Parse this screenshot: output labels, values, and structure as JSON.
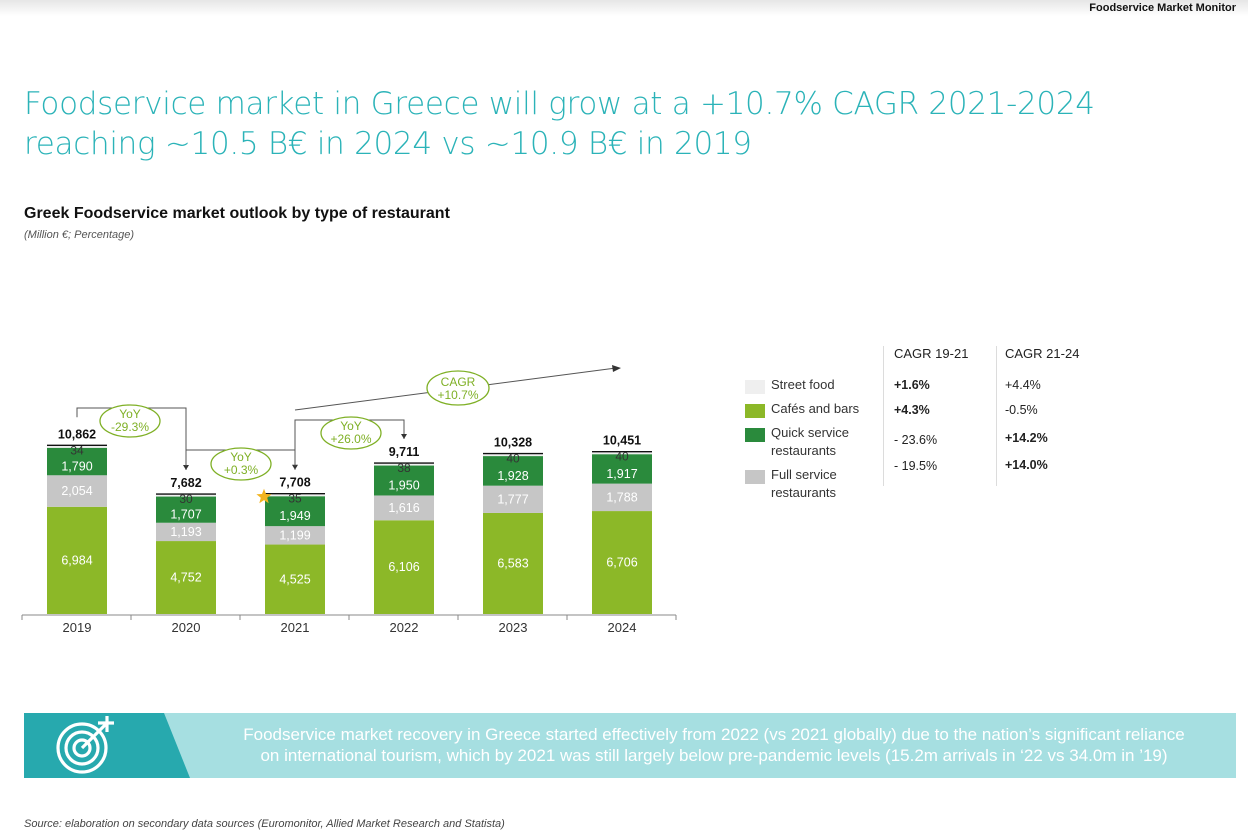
{
  "brand": "Foodservice Market Monitor",
  "headline": {
    "line1": "Foodservice market in Greece will grow at a +10.7% CAGR 2021-2024",
    "line2": "reaching ~10.5 B€ in 2024 vs ~10.9 B€ in 2019"
  },
  "chart_data": {
    "type": "bar",
    "stacked": true,
    "title": "Greek Foodservice market outlook by type of restaurant",
    "subtitle": "(Million €; Percentage)",
    "categories": [
      "2019",
      "2020",
      "2021",
      "2022",
      "2023",
      "2024"
    ],
    "totals": [
      "10,862",
      "7,682",
      "7,708",
      "9,711",
      "10,328",
      "10,451"
    ],
    "series": [
      {
        "name": "Cafés and bars",
        "color": "#8cb828",
        "values": [
          6984,
          4752,
          4525,
          6106,
          6583,
          6706
        ],
        "labels": [
          "6,984",
          "4,752",
          "4,525",
          "6,106",
          "6,583",
          "6,706"
        ]
      },
      {
        "name": "Full service restaurants",
        "color": "#c6c6c6",
        "values": [
          2054,
          1193,
          1199,
          1616,
          1777,
          1788
        ],
        "labels": [
          "2,054",
          "1,193",
          "1,199",
          "1,616",
          "1,777",
          "1,788"
        ]
      },
      {
        "name": "Quick service restaurants",
        "color": "#2a8a3c",
        "values": [
          1790,
          1707,
          1949,
          1950,
          1928,
          1917
        ],
        "labels": [
          "1,790",
          "1,707",
          "1,949",
          "1,950",
          "1,928",
          "1,917"
        ]
      },
      {
        "name": "Street food",
        "color": "#efefef",
        "values": [
          34,
          30,
          35,
          38,
          40,
          40
        ],
        "labels": [
          "34",
          "30",
          "35",
          "38",
          "40",
          "40"
        ]
      }
    ],
    "annotations": {
      "yoy": [
        {
          "label": "YoY",
          "value": "-29.3%",
          "from": "2019",
          "to": "2020"
        },
        {
          "label": "YoY",
          "value": "+0.3%",
          "from": "2020",
          "to": "2021"
        },
        {
          "label": "YoY",
          "value": "+26.0%",
          "from": "2021",
          "to": "2022"
        }
      ],
      "cagr": {
        "label": "CAGR",
        "value": "+10.7%",
        "from": "2021",
        "to": "2024"
      },
      "star": "2021"
    }
  },
  "legend": {
    "items": [
      {
        "label": "Street food",
        "color": "#efefef"
      },
      {
        "label": "Cafés and bars",
        "color": "#8cb828"
      },
      {
        "label": "Quick service restaurants",
        "color": "#2a8a3c"
      },
      {
        "label": "Full service restaurants",
        "color": "#c6c6c6"
      }
    ]
  },
  "cagr_table": {
    "headers": [
      "CAGR 19-21",
      "CAGR 21-24"
    ],
    "rows": [
      [
        "+1.6%",
        "+4.4%"
      ],
      [
        "+4.3%",
        "-0.5%"
      ],
      [
        "- 23.6%",
        "+14.2%"
      ],
      [
        "- 19.5%",
        "+14.0%"
      ]
    ],
    "bold": [
      [
        true,
        false
      ],
      [
        true,
        false
      ],
      [
        false,
        true
      ],
      [
        false,
        true
      ]
    ]
  },
  "banner": {
    "icon": "target-icon",
    "line1": "Foodservice market recovery in Greece started effectively from 2022 (vs 2021 globally) due to the nation’s significant reliance",
    "line2": "on international tourism, which by 2021 was still largely below pre-pandemic levels (15.2m arrivals in ‘22 vs 34.0m in ’19)"
  },
  "source": "Source: elaboration on secondary data sources (Euromonitor, Allied Market Research and Statista)"
}
